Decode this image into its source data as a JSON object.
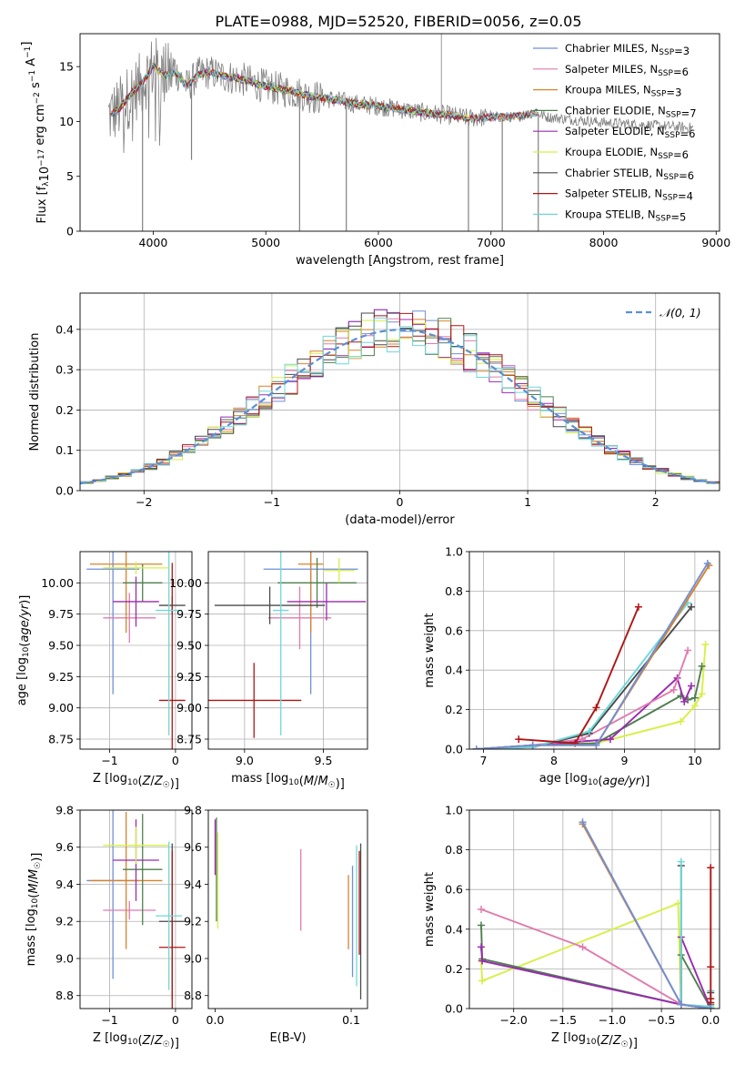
{
  "title": "PLATE=0988, MJD=52520, FIBERID=0056, z=0.05",
  "colors": {
    "Chabrier MILES": "#6f8fd8",
    "Salpeter MILES": "#e07cae",
    "Kroupa MILES": "#d9822b",
    "Chabrier ELODIE": "#4f7f4f",
    "Salpeter ELODIE": "#9a2ab0",
    "Kroupa ELODIE": "#d7ef45",
    "Chabrier STELIB": "#4a4a4a",
    "Salpeter STELIB": "#b01515",
    "Kroupa STELIB": "#6fd8d8",
    "data": "#808080",
    "normal": "#5b8fd8"
  },
  "chart_data": [
    {
      "id": "spectrum",
      "type": "line",
      "xlabel": "wavelength [Angstrom, rest frame]",
      "ylabel": "Flux [f",
      "xlim": [
        3350,
        9030
      ],
      "ylim": [
        0,
        18
      ],
      "xticks": [
        4000,
        5000,
        6000,
        7000,
        8000,
        9000
      ],
      "yticks": [
        0,
        5,
        10,
        15
      ],
      "grid": false,
      "legend_position": "top-right",
      "legend": [
        {
          "model": "Chabrier MILES",
          "n": "3"
        },
        {
          "model": "Salpeter MILES",
          "n": "6"
        },
        {
          "model": "Kroupa MILES",
          "n": "3"
        },
        {
          "model": "Chabrier ELODIE",
          "n": "7"
        },
        {
          "model": "Salpeter ELODIE",
          "n": "6"
        },
        {
          "model": "Kroupa ELODIE",
          "n": "6"
        },
        {
          "model": "Chabrier STELIB",
          "n": "6"
        },
        {
          "model": "Salpeter STELIB",
          "n": "4"
        },
        {
          "model": "Kroupa STELIB",
          "n": "5"
        }
      ],
      "continuum": {
        "x": [
          3600,
          3700,
          3800,
          3900,
          4000,
          4100,
          4200,
          4300,
          4400,
          4500,
          4600,
          4700,
          4800,
          4900,
          5000,
          5200,
          5400,
          5600,
          5800,
          6000,
          6200,
          6400,
          6600,
          6800,
          7000,
          7200,
          7400,
          7500,
          7800,
          8000,
          8200,
          8500,
          8800
        ],
        "y": [
          10.5,
          11.2,
          12.5,
          13.5,
          15.0,
          14.2,
          14.5,
          13.2,
          14.3,
          14.5,
          14.2,
          14.0,
          13.8,
          13.5,
          13.2,
          12.8,
          12.3,
          12.0,
          11.6,
          11.4,
          11.1,
          10.8,
          10.6,
          10.3,
          10.4,
          10.4,
          10.8,
          10.4,
          10.1,
          9.9,
          9.8,
          9.6,
          9.4
        ]
      },
      "spikes": [
        [
          3905,
          0
        ],
        [
          4340,
          6.5
        ],
        [
          5300,
          0
        ],
        [
          5715,
          0
        ],
        [
          6560,
          18
        ],
        [
          6800,
          0
        ],
        [
          7100,
          0
        ],
        [
          7420,
          0
        ]
      ]
    },
    {
      "id": "residuals",
      "type": "histogram",
      "xlabel": "(data-model)/error",
      "ylabel": "Normed distribution",
      "xlim": [
        -2.5,
        2.5
      ],
      "ylim": [
        0,
        0.49
      ],
      "xticks": [
        -2,
        -1,
        0,
        1,
        2
      ],
      "yticks": [
        0.0,
        0.1,
        0.2,
        0.3,
        0.4
      ],
      "grid": true,
      "legend_position": "top-right",
      "legend_label": "𝒩(0, 1)",
      "bin_width": 0.1,
      "bin_start": -2.5
    },
    {
      "id": "age_vs_Z",
      "type": "errorbar",
      "xlabel": "Z [log",
      "ylabel": "age  [log",
      "xlim": [
        -1.45,
        0.25
      ],
      "ylim": [
        8.67,
        10.25
      ],
      "xticks": [
        -1,
        0
      ],
      "yticks": [
        8.75,
        9.0,
        9.25,
        9.5,
        9.75,
        10.0
      ],
      "grid": true,
      "points": [
        {
          "model": "Chabrier MILES",
          "x": -0.95,
          "xe": 0.4,
          "y": 10.11,
          "ye": 1.0
        },
        {
          "model": "Salpeter MILES",
          "x": -0.7,
          "xe": 0.4,
          "y": 9.72,
          "ye": 0.2
        },
        {
          "model": "Kroupa MILES",
          "x": -0.75,
          "xe": 0.55,
          "y": 10.15,
          "ye": 0.55
        },
        {
          "model": "Chabrier ELODIE",
          "x": -0.5,
          "xe": 0.3,
          "y": 10.0,
          "ye": 0.15
        },
        {
          "model": "Salpeter ELODIE",
          "x": -0.6,
          "xe": 0.35,
          "y": 9.85,
          "ye": 0.2
        },
        {
          "model": "Kroupa ELODIE",
          "x": -0.6,
          "xe": 0.5,
          "y": 10.12,
          "ye": 0.05
        },
        {
          "model": "Chabrier STELIB",
          "x": -0.05,
          "xe": 0.2,
          "y": 9.82,
          "ye": 0.07
        },
        {
          "model": "Salpeter STELIB",
          "x": -0.05,
          "xe": 0.2,
          "y": 9.06,
          "ye": 1.1
        },
        {
          "model": "Kroupa STELIB",
          "x": -0.1,
          "xe": 0.2,
          "y": 9.78,
          "ye": 1.0
        }
      ]
    },
    {
      "id": "age_vs_mass",
      "type": "errorbar",
      "xlabel": "mass [log",
      "ylabel": "",
      "xlim": [
        8.77,
        9.78
      ],
      "ylim": [
        8.67,
        10.25
      ],
      "xticks": [
        9.0,
        9.5
      ],
      "yticks": [
        8.75,
        9.0,
        9.25,
        9.5,
        9.75,
        10.0
      ],
      "grid": true,
      "points": [
        {
          "model": "Chabrier MILES",
          "x": 9.42,
          "xe": 0.3,
          "y": 10.11,
          "ye": 1.0
        },
        {
          "model": "Salpeter MILES",
          "x": 9.35,
          "xe": 0.2,
          "y": 9.72,
          "ye": 0.25
        },
        {
          "model": "Kroupa MILES",
          "x": 9.42,
          "xe": 0.08,
          "y": 10.15,
          "ye": 0.55
        },
        {
          "model": "Chabrier ELODIE",
          "x": 9.46,
          "xe": 0.25,
          "y": 10.0,
          "ye": 0.2
        },
        {
          "model": "Salpeter ELODIE",
          "x": 9.52,
          "xe": 0.25,
          "y": 9.85,
          "ye": 0.15
        },
        {
          "model": "Kroupa ELODIE",
          "x": 9.6,
          "xe": 0.1,
          "y": 10.1,
          "ye": 0.1
        },
        {
          "model": "Chabrier STELIB",
          "x": 9.16,
          "xe": 0.35,
          "y": 9.82,
          "ye": 0.15
        },
        {
          "model": "Salpeter STELIB",
          "x": 9.06,
          "xe": 0.3,
          "y": 9.06,
          "ye": 0.3
        },
        {
          "model": "Kroupa STELIB",
          "x": 9.23,
          "xe": 0.05,
          "y": 9.78,
          "ye": 1.0
        }
      ]
    },
    {
      "id": "weight_vs_age",
      "type": "line",
      "xlabel": "age  [log",
      "ylabel": "mass weight",
      "xlim": [
        6.8,
        10.35
      ],
      "ylim": [
        0,
        1.0
      ],
      "xticks": [
        7,
        8,
        9,
        10
      ],
      "yticks": [
        0.0,
        0.2,
        0.4,
        0.6,
        0.8,
        1.0
      ],
      "grid": true,
      "series": [
        {
          "model": "Kroupa ELODIE",
          "x": [
            6.9,
            7.7,
            8.6,
            9.8,
            10.0,
            10.1,
            10.15
          ],
          "y": [
            0.0,
            0.02,
            0.03,
            0.14,
            0.22,
            0.28,
            0.53
          ]
        },
        {
          "model": "Chabrier ELODIE",
          "x": [
            6.9,
            7.7,
            8.6,
            9.8,
            9.9,
            10.0,
            10.1
          ],
          "y": [
            0.0,
            0.02,
            0.03,
            0.27,
            0.25,
            0.26,
            0.42
          ]
        },
        {
          "model": "Salpeter ELODIE",
          "x": [
            6.9,
            7.7,
            8.8,
            9.75,
            9.85,
            9.95
          ],
          "y": [
            0.0,
            0.02,
            0.05,
            0.36,
            0.24,
            0.32
          ]
        },
        {
          "model": "Salpeter MILES",
          "x": [
            6.9,
            7.7,
            8.4,
            9.7,
            9.9
          ],
          "y": [
            0.0,
            0.02,
            0.05,
            0.3,
            0.5
          ]
        },
        {
          "model": "Chabrier STELIB",
          "x": [
            6.9,
            7.7,
            8.5,
            9.95
          ],
          "y": [
            0.0,
            0.01,
            0.08,
            0.72
          ]
        },
        {
          "model": "Kroupa STELIB",
          "x": [
            6.9,
            7.7,
            8.5,
            9.9
          ],
          "y": [
            0.0,
            0.01,
            0.09,
            0.74
          ]
        },
        {
          "model": "Salpeter STELIB",
          "x": [
            7.5,
            8.3,
            8.6,
            9.2
          ],
          "y": [
            0.05,
            0.03,
            0.21,
            0.72
          ]
        },
        {
          "model": "Kroupa MILES",
          "x": [
            6.9,
            7.7,
            8.6,
            10.2
          ],
          "y": [
            0.0,
            0.02,
            0.02,
            0.93
          ]
        },
        {
          "model": "Chabrier MILES",
          "x": [
            6.9,
            7.7,
            8.6,
            10.18
          ],
          "y": [
            0.0,
            0.02,
            0.02,
            0.94
          ]
        }
      ]
    },
    {
      "id": "mass_vs_Z",
      "type": "errorbar",
      "xlabel": "Z [log",
      "ylabel": "mass [log",
      "xlim": [
        -1.45,
        0.25
      ],
      "ylim": [
        8.73,
        9.8
      ],
      "xticks": [
        -1,
        0
      ],
      "yticks": [
        8.8,
        9.0,
        9.2,
        9.4,
        9.6,
        9.8
      ],
      "grid": true,
      "points": [
        {
          "model": "Chabrier MILES",
          "x": -0.95,
          "xe": 0.4,
          "y": 9.42,
          "ye": 0.53
        },
        {
          "model": "Salpeter MILES",
          "x": -0.7,
          "xe": 0.4,
          "y": 9.26,
          "ye": 0.05
        },
        {
          "model": "Kroupa MILES",
          "x": -0.75,
          "xe": 0.55,
          "y": 9.42,
          "ye": 0.37
        },
        {
          "model": "Chabrier ELODIE",
          "x": -0.5,
          "xe": 0.3,
          "y": 9.48,
          "ye": 0.3
        },
        {
          "model": "Salpeter ELODIE",
          "x": -0.6,
          "xe": 0.35,
          "y": 9.53,
          "ye": 0.22
        },
        {
          "model": "Kroupa ELODIE",
          "x": -0.6,
          "xe": 0.5,
          "y": 9.61,
          "ye": 0.1
        },
        {
          "model": "Chabrier STELIB",
          "x": -0.05,
          "xe": 0.2,
          "y": 9.2,
          "ye": 0.42
        },
        {
          "model": "Salpeter STELIB",
          "x": -0.05,
          "xe": 0.2,
          "y": 9.06,
          "ye": 0.52
        },
        {
          "model": "Kroupa STELIB",
          "x": -0.1,
          "xe": 0.2,
          "y": 9.23,
          "ye": 0.4
        }
      ]
    },
    {
      "id": "mass_vs_ebv",
      "type": "errorbar",
      "xlabel": "E(B-V)",
      "ylabel": "",
      "xlim": [
        -0.005,
        0.112
      ],
      "ylim": [
        8.73,
        9.8
      ],
      "xticks": [
        0.0,
        0.1
      ],
      "yticks": [
        8.8,
        9.0,
        9.2,
        9.4,
        9.6,
        9.8
      ],
      "grid": false,
      "points": [
        {
          "model": "Chabrier MILES",
          "x": 0.101,
          "y": 9.2,
          "ye": 0.3
        },
        {
          "model": "Salpeter MILES",
          "x": 0.063,
          "y": 9.37,
          "ye": 0.22
        },
        {
          "model": "Kroupa MILES",
          "x": 0.098,
          "y": 9.25,
          "ye": 0.2
        },
        {
          "model": "Chabrier ELODIE",
          "x": 0.001,
          "y": 9.48,
          "ye": 0.28
        },
        {
          "model": "Salpeter ELODIE",
          "x": 0.0,
          "y": 9.6,
          "ye": 0.15
        },
        {
          "model": "Kroupa ELODIE",
          "x": 0.002,
          "y": 9.42,
          "ye": 0.26
        },
        {
          "model": "Chabrier STELIB",
          "x": 0.107,
          "y": 9.2,
          "ye": 0.42
        },
        {
          "model": "Salpeter STELIB",
          "x": 0.106,
          "y": 9.3,
          "ye": 0.28
        },
        {
          "model": "Kroupa STELIB",
          "x": 0.104,
          "y": 9.23,
          "ye": 0.38
        }
      ]
    },
    {
      "id": "weight_vs_Z",
      "type": "line",
      "xlabel": "Z [log",
      "ylabel": "mass weight",
      "xlim": [
        -2.45,
        0.09
      ],
      "ylim": [
        0,
        1.0
      ],
      "xticks": [
        -2.0,
        -1.5,
        -1.0,
        -0.5,
        0.0
      ],
      "yticks": [
        0.0,
        0.2,
        0.4,
        0.6,
        0.8,
        1.0
      ],
      "grid": true,
      "series": [
        {
          "model": "Kroupa ELODIE",
          "x": [
            -2.33,
            -2.32,
            -0.33,
            -0.3,
            0.0,
            0.0
          ],
          "y": [
            0.24,
            0.14,
            0.53,
            0.02,
            0.0,
            0.02
          ]
        },
        {
          "model": "Chabrier ELODIE",
          "x": [
            -2.33,
            -2.32,
            -0.3,
            -0.3,
            0.0,
            0.0
          ],
          "y": [
            0.42,
            0.25,
            0.02,
            0.27,
            0.0,
            0.02
          ]
        },
        {
          "model": "Salpeter ELODIE",
          "x": [
            -2.33,
            -2.32,
            -0.3,
            -0.3,
            0.0
          ],
          "y": [
            0.31,
            0.24,
            0.02,
            0.36,
            0.0
          ]
        },
        {
          "model": "Salpeter MILES",
          "x": [
            -2.33,
            -1.3,
            -0.3,
            0.0
          ],
          "y": [
            0.5,
            0.31,
            0.02,
            0.0
          ]
        },
        {
          "model": "Chabrier STELIB",
          "x": [
            -0.3,
            -0.3,
            0.0,
            0.0
          ],
          "y": [
            0.72,
            0.02,
            0.0,
            0.08
          ]
        },
        {
          "model": "Kroupa STELIB",
          "x": [
            -0.3,
            -0.3,
            0.0,
            0.0
          ],
          "y": [
            0.74,
            0.02,
            0.01,
            0.09
          ]
        },
        {
          "model": "Salpeter STELIB",
          "x": [
            0.0,
            0.0,
            0.0,
            0.0
          ],
          "y": [
            0.71,
            0.21,
            0.05,
            0.03
          ]
        },
        {
          "model": "Kroupa MILES",
          "x": [
            -1.3,
            -0.3,
            0.0
          ],
          "y": [
            0.93,
            0.02,
            0.0
          ]
        },
        {
          "model": "Chabrier MILES",
          "x": [
            -1.3,
            -0.3,
            0.0
          ],
          "y": [
            0.94,
            0.02,
            0.0
          ]
        }
      ]
    }
  ]
}
